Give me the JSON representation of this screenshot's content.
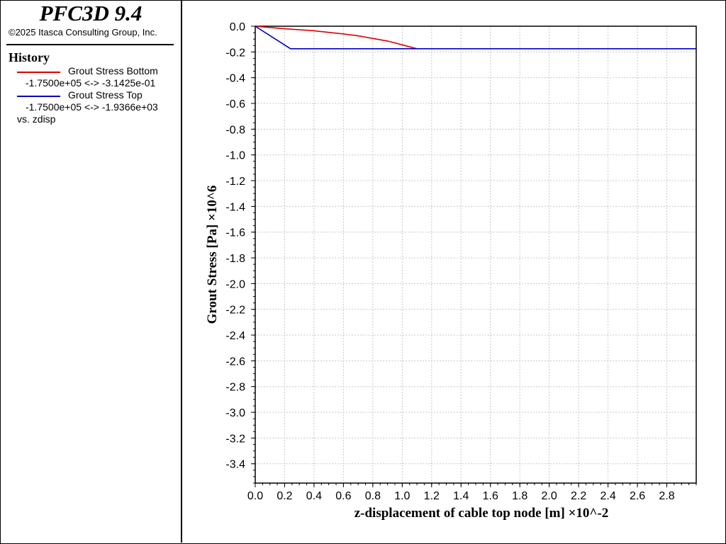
{
  "app": {
    "title": "PFC3D 9.4",
    "copyright": "©2025 Itasca Consulting Group, Inc."
  },
  "legend": {
    "heading": "History",
    "items": [
      {
        "name": "Grout Stress Bottom",
        "range": "-1.7500e+05 <-> -3.1425e-01",
        "color": "#e00000"
      },
      {
        "name": "Grout Stress Top",
        "range": "-1.7500e+05 <-> -1.9366e+03",
        "color": "#0000c0"
      }
    ],
    "vs": "vs. zdisp"
  },
  "chart_data": {
    "type": "line",
    "xlabel": "z-displacement of cable top node [m]  ×10^-2",
    "ylabel": "Grout Stress [Pa]  ×10^6",
    "xlim": [
      0.0,
      3.0
    ],
    "ylim": [
      -3.55,
      0.0
    ],
    "grid": true,
    "x_ticks": [
      0.0,
      0.2,
      0.4,
      0.6,
      0.8,
      1.0,
      1.2,
      1.4,
      1.6,
      1.8,
      2.0,
      2.2,
      2.4,
      2.6,
      2.8
    ],
    "x_tick_labels": [
      "0.0",
      "0.2",
      "0.4",
      "0.6",
      "0.8",
      "1.0",
      "1.2",
      "1.4",
      "1.6",
      "1.8",
      "2.0",
      "2.2",
      "2.4",
      "2.6",
      "2.8"
    ],
    "y_ticks": [
      0.0,
      -0.2,
      -0.4,
      -0.6,
      -0.8,
      -1.0,
      -1.2,
      -1.4,
      -1.6,
      -1.8,
      -2.0,
      -2.2,
      -2.4,
      -2.6,
      -2.8,
      -3.0,
      -3.2,
      -3.4
    ],
    "y_tick_labels": [
      "0.0",
      "-0.2",
      "-0.4",
      "-0.6",
      "-0.8",
      "-1.0",
      "-1.2",
      "-1.4",
      "-1.6",
      "-1.8",
      "-2.0",
      "-2.2",
      "-2.4",
      "-2.6",
      "-2.8",
      "-3.0",
      "-3.2",
      "-3.4"
    ],
    "series": [
      {
        "name": "Grout Stress Bottom",
        "color": "#e00000",
        "x": [
          0.0,
          0.2,
          0.4,
          0.6,
          0.7,
          0.8,
          0.9,
          1.0,
          1.1
        ],
        "y": [
          0.0,
          -0.02,
          -0.035,
          -0.06,
          -0.075,
          -0.095,
          -0.115,
          -0.145,
          -0.175
        ]
      },
      {
        "name": "Grout Stress Top",
        "color": "#0000c0",
        "x": [
          0.0,
          0.24,
          3.0
        ],
        "y": [
          0.0,
          -0.175,
          -0.175
        ]
      }
    ]
  }
}
